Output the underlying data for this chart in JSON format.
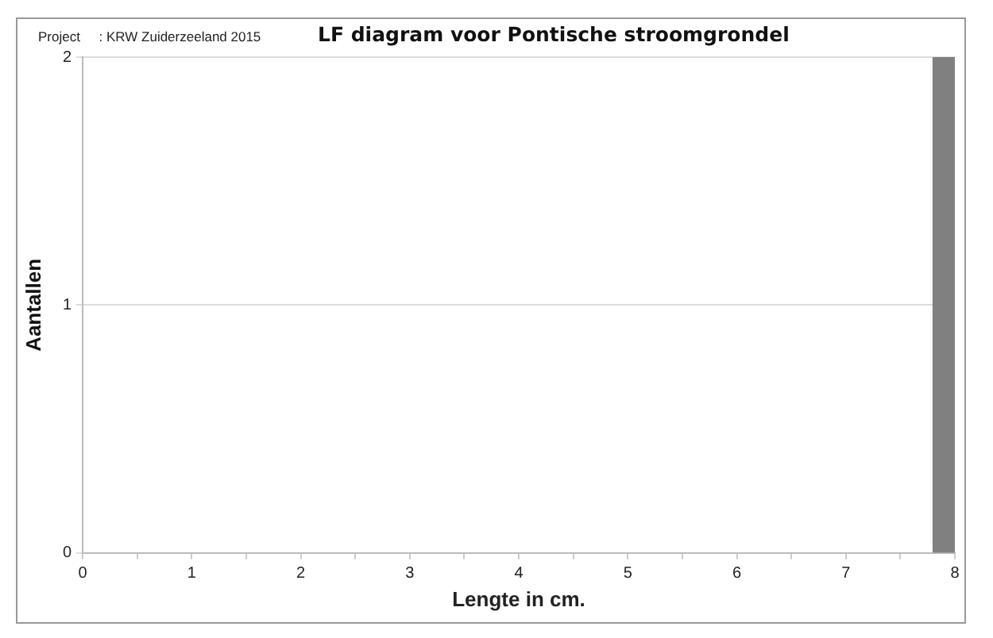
{
  "chart_data": {
    "type": "histogram",
    "title": "LF diagram voor Pontische stroomgrondel",
    "annotations": [
      "Project     : KRW Zuiderzeeland 2015"
    ],
    "xlabel": "Lengte in cm.",
    "ylabel": "Aantallen",
    "bins": [
      7.8,
      8
    ],
    "values": [
      2
    ],
    "color": "#808080",
    "xlim": [
      0,
      8
    ],
    "xticks": [
      0,
      {
        "value": 0.5,
        "label": null
      },
      1,
      {
        "value": 1.5,
        "label": null
      },
      2,
      {
        "value": 2.5,
        "label": null
      },
      3,
      {
        "value": 3.5,
        "label": null
      },
      4,
      {
        "value": 4.5,
        "label": null
      },
      5,
      {
        "value": 5.5,
        "label": null
      },
      6,
      {
        "value": 6.5,
        "label": null
      },
      7,
      {
        "value": 7.5,
        "label": null
      },
      8
    ],
    "ylim": [
      0,
      2
    ],
    "yticks": [
      0,
      1,
      2
    ],
    "grid": "y",
    "legend": false
  }
}
